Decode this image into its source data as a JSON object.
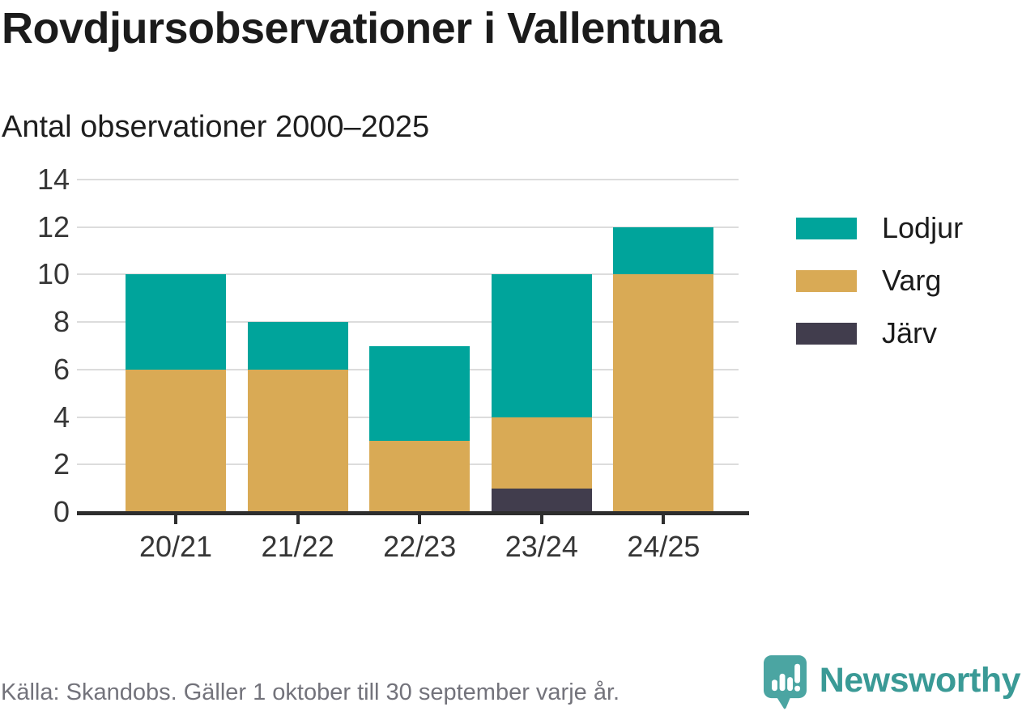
{
  "header": {
    "title": "Rovdjursobservationer i Vallentuna",
    "subtitle": "Antal observationer 2000–2025"
  },
  "chart_data": {
    "type": "bar",
    "stacked": true,
    "title": "Rovdjursobservationer i Vallentuna",
    "subtitle": "Antal observationer 2000–2025",
    "categories": [
      "20/21",
      "21/22",
      "22/23",
      "23/24",
      "24/25"
    ],
    "series": [
      {
        "name": "Lodjur",
        "color": "#00a49b",
        "values": [
          4,
          2,
          4,
          6,
          2
        ]
      },
      {
        "name": "Varg",
        "color": "#d9aa55",
        "values": [
          6,
          6,
          3,
          3,
          10
        ]
      },
      {
        "name": "Järv",
        "color": "#413d4d",
        "values": [
          0,
          0,
          0,
          1,
          0
        ]
      }
    ],
    "stack_totals": [
      10,
      8,
      7,
      10,
      12
    ],
    "yticks": [
      0,
      2,
      4,
      6,
      8,
      10,
      12,
      14
    ],
    "ylim": [
      0,
      14
    ],
    "xlabel": "",
    "ylabel": "",
    "grid": true,
    "legend_position": "right"
  },
  "footer": {
    "source": "Källa: Skandobs. Gäller 1 oktober till 30 september varje år.",
    "brand": "Newsworthy"
  },
  "colors": {
    "lodjur": "#00a49b",
    "varg": "#d9aa55",
    "jarv": "#413d4d",
    "axis": "#2e2e2e",
    "gridline": "#dcdcdc",
    "tick_text": "#363636",
    "source_text": "#73737b",
    "brand_teal": "#3a9a96",
    "brand_icon_teal": "#4ba5a2"
  }
}
